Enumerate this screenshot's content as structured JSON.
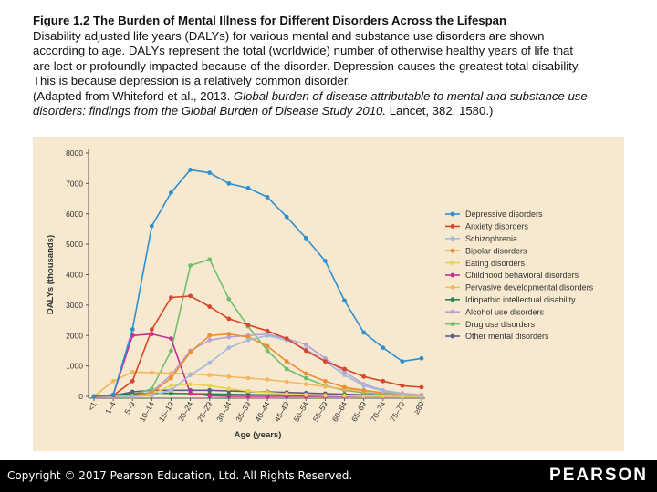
{
  "caption": {
    "title": "Figure 1.2 The Burden of Mental Illness for Different Disorders Across the Lifespan",
    "line1": "Disability adjusted life years (DALYs) for various mental and substance use disorders are shown",
    "line2": "according to age. DALYs represent the total (worldwide) number of otherwise healthy years of life that",
    "line3": "are lost or profoundly impacted because of the disorder. Depression causes the greatest total disability.",
    "line4": "This is because depression is a relatively common disorder.",
    "line5_prefix": "(Adapted from Whiteford et al., 2013. ",
    "line5_italic": "Global burden of disease attributable to mental and substance use",
    "line6_italic": "disorders: findings from the Global Burden of Disease Study 2010.",
    "line6_suffix": " Lancet, 382, 1580.)"
  },
  "footer": {
    "copyright": "Copyright © 2017 Pearson Education, Ltd. All Rights Reserved.",
    "logo": "PEARSON"
  },
  "chart_data": {
    "type": "line",
    "xlabel": "Age (years)",
    "ylabel": "DALYs (thousands)",
    "ylim": [
      0,
      8000
    ],
    "yticks": [
      "0",
      "1000",
      "2000",
      "3000",
      "4000",
      "5000",
      "6000",
      "7000",
      "8000"
    ],
    "categories": [
      "<1",
      "1–4",
      "5–9",
      "10–14",
      "15–19",
      "20–24",
      "25–29",
      "30–34",
      "35–39",
      "40–44",
      "45–49",
      "50–54",
      "55–59",
      "60–64",
      "65–69",
      "70–74",
      "75–79",
      "≥80"
    ],
    "grid": false,
    "legend_position": "right",
    "series": [
      {
        "name": "Depressive disorders",
        "color": "#2e8fd0",
        "values": [
          0,
          50,
          2200,
          5600,
          6700,
          7450,
          7350,
          7000,
          6850,
          6550,
          5900,
          5200,
          4450,
          3150,
          2100,
          1600,
          1150,
          1250
        ]
      },
      {
        "name": "Anxiety disorders",
        "color": "#d9452b",
        "values": [
          0,
          30,
          500,
          2200,
          3250,
          3300,
          2950,
          2550,
          2350,
          2150,
          1900,
          1500,
          1150,
          900,
          650,
          500,
          350,
          300
        ]
      },
      {
        "name": "Schizophrenia",
        "color": "#a4b8db",
        "values": [
          0,
          0,
          0,
          30,
          200,
          700,
          1100,
          1600,
          1850,
          2000,
          1850,
          1550,
          1150,
          700,
          350,
          180,
          80,
          30
        ]
      },
      {
        "name": "Bipolar disorders",
        "color": "#eb8d33",
        "values": [
          0,
          0,
          20,
          120,
          600,
          1450,
          2000,
          2050,
          1950,
          1650,
          1150,
          750,
          500,
          300,
          200,
          120,
          80,
          30
        ]
      },
      {
        "name": "Eating disorders",
        "color": "#e9d24d",
        "values": [
          0,
          0,
          0,
          80,
          350,
          400,
          350,
          250,
          180,
          130,
          80,
          50,
          30,
          20,
          10,
          10,
          0,
          0
        ]
      },
      {
        "name": "Childhood behavioral disorders",
        "color": "#c62f93",
        "values": [
          0,
          50,
          2000,
          2050,
          1900,
          100,
          20,
          0,
          0,
          0,
          0,
          0,
          0,
          0,
          0,
          0,
          0,
          0
        ]
      },
      {
        "name": "Pervasive developmental disorders",
        "color": "#f3b75e",
        "values": [
          0,
          500,
          800,
          780,
          760,
          730,
          700,
          650,
          600,
          550,
          480,
          400,
          320,
          240,
          180,
          120,
          80,
          40
        ]
      },
      {
        "name": "Idiopathic intellectual disability",
        "color": "#2f7f4f",
        "values": [
          0,
          50,
          80,
          100,
          100,
          90,
          80,
          70,
          60,
          50,
          45,
          40,
          35,
          30,
          25,
          20,
          15,
          10
        ]
      },
      {
        "name": "Alcohol use disorders",
        "color": "#b7a2d3",
        "values": [
          0,
          0,
          20,
          150,
          700,
          1500,
          1850,
          1950,
          2000,
          2050,
          1900,
          1700,
          1250,
          800,
          400,
          200,
          100,
          50
        ]
      },
      {
        "name": "Drug use disorders",
        "color": "#6fbf6d",
        "values": [
          0,
          0,
          50,
          250,
          1500,
          4300,
          4500,
          3200,
          2300,
          1500,
          900,
          600,
          350,
          200,
          120,
          70,
          40,
          20
        ]
      },
      {
        "name": "Other mental disorders",
        "color": "#5e5a8c",
        "values": [
          0,
          20,
          150,
          200,
          200,
          200,
          200,
          180,
          160,
          150,
          130,
          110,
          90,
          70,
          55,
          40,
          30,
          20
        ]
      }
    ]
  }
}
